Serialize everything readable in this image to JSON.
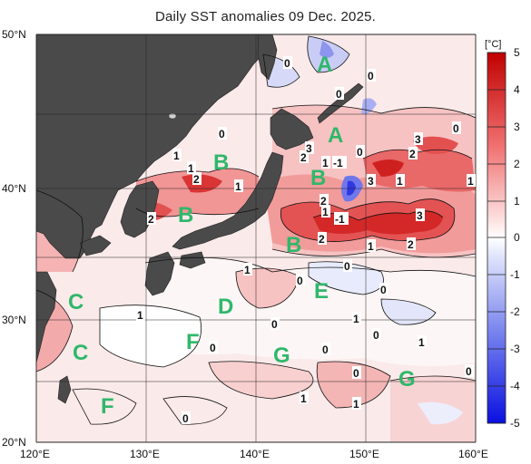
{
  "title": "Daily SST anomalies 09 Dec. 2025.",
  "lat_labels": [
    "50°N",
    "40°N",
    "30°N",
    "20°N"
  ],
  "lon_labels": [
    "120°E",
    "130°E",
    "140°E",
    "150°E",
    "160°E"
  ],
  "colorbar": {
    "unit": "[°C]",
    "ticks": [
      "5",
      "4",
      "3",
      "2",
      "1",
      "0",
      "-1",
      "-2",
      "-3",
      "-4",
      "-5"
    ]
  },
  "region_labels": [
    "A",
    "A",
    "B",
    "B",
    "B",
    "B",
    "C",
    "C",
    "D",
    "E",
    "F",
    "F",
    "G",
    "G"
  ],
  "contour_labels": [
    "0",
    "0",
    "0",
    "0",
    "1",
    "1",
    "2",
    "2",
    "1",
    "2",
    "0",
    "1",
    "-1",
    "3",
    "2",
    "3",
    "1",
    "3",
    "3",
    "2",
    "2",
    "1",
    "1",
    "0",
    "1",
    "-1",
    "0",
    "0",
    "0",
    "1",
    "1",
    "0",
    "1",
    "0",
    "0",
    "0",
    "1",
    "0",
    "0",
    "1",
    "0",
    "1",
    "2",
    "1"
  ],
  "colors": {
    "land": "#4a4a4a",
    "region_label": "#2fb86a",
    "grid": "#222222",
    "contour": "#111111"
  }
}
